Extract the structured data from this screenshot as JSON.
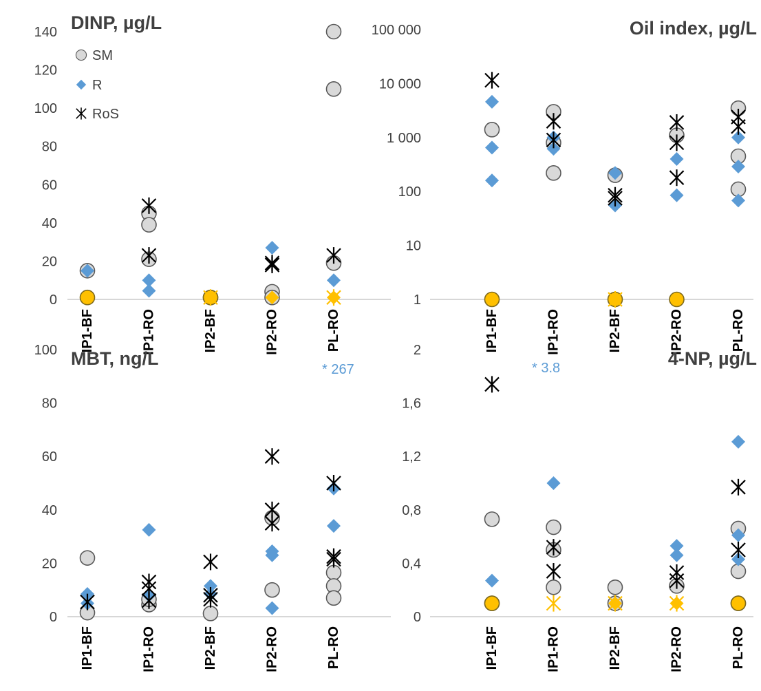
{
  "colors": {
    "SM_fill": "#d9d9d9",
    "SM_stroke": "#595959",
    "R": "#5b9bd5",
    "RoS": "#000000",
    "below_loq": "#ffc000",
    "axis": "#bfbfbf",
    "text": "#404040"
  },
  "legend": [
    "SM",
    "R",
    "RoS"
  ],
  "chart_data": [
    {
      "type": "scatter",
      "title": "DINP, µg/L",
      "categories": [
        "IP1-BF",
        "IP1-RO",
        "IP2-BF",
        "IP2-RO",
        "PL-RO"
      ],
      "ylim": [
        0,
        140
      ],
      "yticks": [
        0,
        20,
        40,
        60,
        80,
        100,
        120,
        140
      ],
      "ytick_labels": [
        "0",
        "20",
        "40",
        "60",
        "80",
        "100",
        "120",
        "140"
      ],
      "yscale": "linear",
      "series": [
        {
          "name": "SM",
          "marker": "circle",
          "points": [
            [
              0,
              15
            ],
            [
              1,
              45
            ],
            [
              1,
              39
            ],
            [
              1,
              21
            ],
            [
              2,
              1
            ],
            [
              3,
              4
            ],
            [
              3,
              1
            ],
            [
              4,
              140
            ],
            [
              4,
              110
            ],
            [
              4,
              19
            ]
          ]
        },
        {
          "name": "R",
          "marker": "diamond",
          "points": [
            [
              0,
              15
            ],
            [
              1,
              10
            ],
            [
              1,
              4.5
            ],
            [
              3,
              27
            ],
            [
              4,
              10
            ]
          ]
        },
        {
          "name": "RoS",
          "marker": "asterisk",
          "points": [
            [
              1,
              49
            ],
            [
              1,
              23
            ],
            [
              3,
              19
            ],
            [
              3,
              18
            ],
            [
              4,
              23
            ]
          ]
        },
        {
          "marker": "circle-yellow",
          "points": [
            [
              0,
              1
            ],
            [
              2,
              1
            ]
          ]
        },
        {
          "marker": "diamond-yellow",
          "points": [
            [
              0,
              1
            ],
            [
              2,
              1
            ],
            [
              3,
              1
            ],
            [
              4,
              1
            ]
          ]
        },
        {
          "marker": "asterisk-yellow",
          "points": [
            [
              2,
              1
            ],
            [
              4,
              1
            ]
          ]
        }
      ]
    },
    {
      "type": "scatter",
      "title": "Oil index, µg/L",
      "categories": [
        "IP1-BF",
        "IP1-RO",
        "IP2-BF",
        "IP2-RO",
        "PL-RO"
      ],
      "ylim": [
        1,
        100000
      ],
      "yticks": [
        1,
        10,
        100,
        1000,
        10000,
        100000
      ],
      "ytick_labels": [
        "1",
        "10",
        "100",
        "1 000",
        "10 000",
        "100 000"
      ],
      "yscale": "log",
      "series": [
        {
          "name": "SM",
          "marker": "circle",
          "points": [
            [
              0,
              1400
            ],
            [
              1,
              3000
            ],
            [
              1,
              800
            ],
            [
              1,
              220
            ],
            [
              2,
              200
            ],
            [
              3,
              1100
            ],
            [
              4,
              3500
            ],
            [
              4,
              450
            ],
            [
              4,
              110
            ]
          ]
        },
        {
          "name": "R",
          "marker": "diamond",
          "points": [
            [
              0,
              4600
            ],
            [
              0,
              650
            ],
            [
              0,
              160
            ],
            [
              1,
              620
            ],
            [
              1,
              1000
            ],
            [
              2,
              220
            ],
            [
              2,
              55
            ],
            [
              3,
              400
            ],
            [
              3,
              85
            ],
            [
              4,
              1000
            ],
            [
              4,
              290
            ],
            [
              4,
              68
            ]
          ]
        },
        {
          "name": "RoS",
          "marker": "asterisk",
          "points": [
            [
              0,
              11500
            ],
            [
              1,
              2000
            ],
            [
              1,
              900
            ],
            [
              2,
              85
            ],
            [
              2,
              75
            ],
            [
              3,
              1900
            ],
            [
              3,
              800
            ],
            [
              3,
              180
            ],
            [
              4,
              2400
            ],
            [
              4,
              1600
            ]
          ]
        },
        {
          "marker": "circle-yellow",
          "points": [
            [
              0,
              1
            ],
            [
              2,
              1
            ],
            [
              3,
              1
            ]
          ]
        },
        {
          "marker": "diamond-yellow",
          "points": [
            [
              0,
              1
            ]
          ]
        },
        {
          "marker": "asterisk-yellow",
          "points": [
            [
              2,
              1
            ]
          ]
        }
      ]
    },
    {
      "type": "scatter",
      "title": "MBT, ng/L",
      "note": "* 267",
      "categories": [
        "IP1-BF",
        "IP1-RO",
        "IP2-BF",
        "IP2-RO",
        "PL-RO"
      ],
      "ylim": [
        0,
        100
      ],
      "yticks": [
        0,
        20,
        40,
        60,
        80,
        100
      ],
      "ytick_labels": [
        "0",
        "20",
        "40",
        "60",
        "80",
        "100"
      ],
      "yscale": "linear",
      "series": [
        {
          "name": "SM",
          "marker": "circle",
          "points": [
            [
              0,
              22
            ],
            [
              0,
              1.5
            ],
            [
              1,
              4.5
            ],
            [
              1,
              6.5
            ],
            [
              2,
              1.2
            ],
            [
              3,
              37
            ],
            [
              3,
              10
            ],
            [
              4,
              16.5
            ],
            [
              4,
              11.5
            ],
            [
              4,
              7
            ]
          ]
        },
        {
          "name": "R",
          "marker": "diamond",
          "points": [
            [
              0,
              8.5
            ],
            [
              0,
              5
            ],
            [
              1,
              32.5
            ],
            [
              1,
              8
            ],
            [
              2,
              11.5
            ],
            [
              2,
              8.5
            ],
            [
              3,
              24.5
            ],
            [
              3,
              23
            ],
            [
              3,
              3.2
            ],
            [
              4,
              48
            ],
            [
              4,
              34
            ]
          ]
        },
        {
          "name": "RoS",
          "marker": "asterisk",
          "points": [
            [
              0,
              5.5
            ],
            [
              1,
              13
            ],
            [
              1,
              10.5
            ],
            [
              1,
              6
            ],
            [
              2,
              20.5
            ],
            [
              2,
              8
            ],
            [
              2,
              6.5
            ],
            [
              3,
              60
            ],
            [
              3,
              40
            ],
            [
              3,
              35
            ],
            [
              4,
              50
            ],
            [
              4,
              22.5
            ],
            [
              4,
              21.5
            ]
          ]
        }
      ]
    },
    {
      "type": "scatter",
      "title": "4-NP, µg/L",
      "note": "* 3.8",
      "categories": [
        "IP1-BF",
        "IP1-RO",
        "IP2-BF",
        "IP2-RO",
        "PL-RO"
      ],
      "ylim": [
        0,
        2
      ],
      "yticks": [
        0,
        0.4,
        0.8,
        1.2,
        1.6,
        2
      ],
      "ytick_labels": [
        "0",
        "0,4",
        "0,8",
        "1,2",
        "1,6",
        "2"
      ],
      "yscale": "linear",
      "series": [
        {
          "name": "SM",
          "marker": "circle",
          "points": [
            [
              0,
              0.73
            ],
            [
              0,
              0.1
            ],
            [
              1,
              0.67
            ],
            [
              1,
              0.5
            ],
            [
              1,
              0.22
            ],
            [
              2,
              0.22
            ],
            [
              2,
              0.1
            ],
            [
              3,
              0.23
            ],
            [
              4,
              0.66
            ],
            [
              4,
              0.34
            ],
            [
              4,
              0.1
            ]
          ]
        },
        {
          "name": "R",
          "marker": "diamond",
          "points": [
            [
              0,
              0.27
            ],
            [
              1,
              1.0
            ],
            [
              3,
              0.53
            ],
            [
              3,
              0.46
            ],
            [
              4,
              1.31
            ],
            [
              4,
              0.61
            ],
            [
              4,
              0.43
            ]
          ]
        },
        {
          "name": "RoS",
          "marker": "asterisk",
          "points": [
            [
              0,
              1.74
            ],
            [
              1,
              0.52
            ],
            [
              1,
              0.34
            ],
            [
              3,
              0.33
            ],
            [
              3,
              0.27
            ],
            [
              4,
              0.97
            ],
            [
              4,
              0.5
            ]
          ]
        },
        {
          "marker": "circle-yellow",
          "points": [
            [
              0,
              0.1
            ],
            [
              4,
              0.1
            ]
          ]
        },
        {
          "marker": "diamond-yellow",
          "points": [
            [
              0,
              0.1
            ],
            [
              2,
              0.1
            ],
            [
              3,
              0.1
            ]
          ]
        },
        {
          "marker": "asterisk-yellow",
          "points": [
            [
              1,
              0.1
            ],
            [
              2,
              0.1
            ],
            [
              3,
              0.1
            ]
          ]
        }
      ]
    }
  ]
}
